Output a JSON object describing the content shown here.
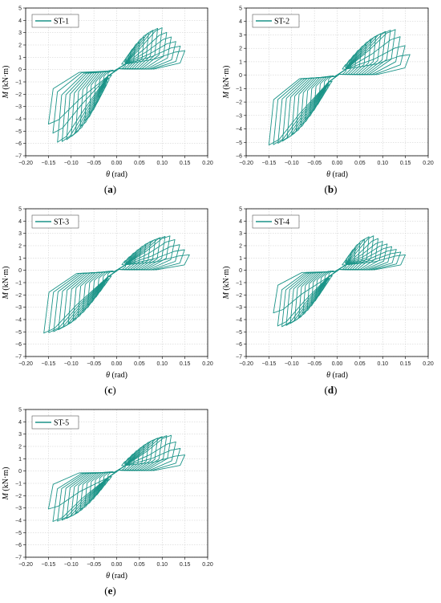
{
  "style": {
    "series_color": "#1b9488",
    "grid_color": "#c9c9c9",
    "axis_color": "#000000"
  },
  "chart_data": [
    {
      "type": "line",
      "panel_label": "a",
      "xlabel": "θ (rad)",
      "ylabel": "M (kN·m)",
      "xlim": [
        -0.2,
        0.2
      ],
      "ylim": [
        -7,
        5
      ],
      "xticks": [
        "−0.20",
        "−0.15",
        "−0.10",
        "−0.05",
        "0.00",
        "0.05",
        "0.10",
        "0.15",
        "0.20"
      ],
      "yticks": [
        "−7",
        "−6",
        "−5",
        "−4",
        "−3",
        "−2",
        "−1",
        "0",
        "1",
        "2",
        "3",
        "4",
        "5"
      ],
      "grid": true,
      "legend_position": "top-left",
      "series": [
        {
          "name": "ST-1",
          "peak_pos": [
            0.1,
            3.4
          ],
          "peak_neg": [
            -0.13,
            -5.9
          ],
          "max_theta": [
            0.15,
            -0.15
          ],
          "loops": 14
        }
      ]
    },
    {
      "type": "line",
      "panel_label": "b",
      "xlabel": "θ (rad)",
      "ylabel": "M (kN·m)",
      "xlim": [
        -0.2,
        0.2
      ],
      "ylim": [
        -6,
        5
      ],
      "xticks": [
        "−0.20",
        "−0.15",
        "−0.10",
        "−0.05",
        "0.00",
        "0.05",
        "0.10",
        "0.15",
        "0.20"
      ],
      "yticks": [
        "−6",
        "−5",
        "−4",
        "−3",
        "−2",
        "−1",
        "0",
        "1",
        "2",
        "3",
        "4",
        "5"
      ],
      "grid": true,
      "legend_position": "top-left",
      "series": [
        {
          "name": "ST-2",
          "peak_pos": [
            0.13,
            3.4
          ],
          "peak_neg": [
            -0.15,
            -5.2
          ],
          "max_theta": [
            0.16,
            -0.15
          ],
          "loops": 14
        }
      ]
    },
    {
      "type": "line",
      "panel_label": "c",
      "xlabel": "θ (rad)",
      "ylabel": "M (kN·m)",
      "xlim": [
        -0.2,
        0.2
      ],
      "ylim": [
        -7,
        5
      ],
      "xticks": [
        "−0.20",
        "−0.15",
        "−0.10",
        "−0.05",
        "0.00",
        "0.05",
        "0.10",
        "0.15",
        "0.20"
      ],
      "yticks": [
        "−7",
        "−6",
        "−5",
        "−4",
        "−3",
        "−2",
        "−1",
        "0",
        "1",
        "2",
        "3",
        "4",
        "5"
      ],
      "grid": true,
      "legend_position": "top-left",
      "series": [
        {
          "name": "ST-3",
          "peak_pos": [
            0.12,
            2.8
          ],
          "peak_neg": [
            -0.16,
            -5.1
          ],
          "max_theta": [
            0.16,
            -0.16
          ],
          "loops": 14
        }
      ]
    },
    {
      "type": "line",
      "panel_label": "d",
      "xlabel": "θ (rad)",
      "ylabel": "M (kN·m)",
      "xlim": [
        -0.2,
        0.2
      ],
      "ylim": [
        -7,
        5
      ],
      "xticks": [
        "−0.20",
        "−0.15",
        "−0.10",
        "−0.05",
        "0.00",
        "0.05",
        "0.10",
        "0.15",
        "0.20"
      ],
      "yticks": [
        "−7",
        "−6",
        "−5",
        "−4",
        "−3",
        "−2",
        "−1",
        "0",
        "1",
        "2",
        "3",
        "4",
        "5"
      ],
      "grid": true,
      "legend_position": "top-left",
      "series": [
        {
          "name": "ST-4",
          "peak_pos": [
            0.08,
            2.8
          ],
          "peak_neg": [
            -0.13,
            -4.6
          ],
          "max_theta": [
            0.15,
            -0.14
          ],
          "loops": 14
        }
      ]
    },
    {
      "type": "line",
      "panel_label": "e",
      "xlabel": "θ (rad)",
      "ylabel": "M (kN·m)",
      "xlim": [
        -0.2,
        0.2
      ],
      "ylim": [
        -7,
        5
      ],
      "xticks": [
        "−0.20",
        "−0.15",
        "−0.10",
        "−0.05",
        "0.00",
        "0.05",
        "0.10",
        "0.15",
        "0.20"
      ],
      "yticks": [
        "−7",
        "−6",
        "−5",
        "−4",
        "−3",
        "−2",
        "−1",
        "0",
        "1",
        "2",
        "3",
        "4",
        "5"
      ],
      "grid": true,
      "legend_position": "top-left",
      "series": [
        {
          "name": "ST-5",
          "peak_pos": [
            0.12,
            2.9
          ],
          "peak_neg": [
            -0.14,
            -4.1
          ],
          "max_theta": [
            0.15,
            -0.15
          ],
          "loops": 14
        }
      ]
    }
  ]
}
